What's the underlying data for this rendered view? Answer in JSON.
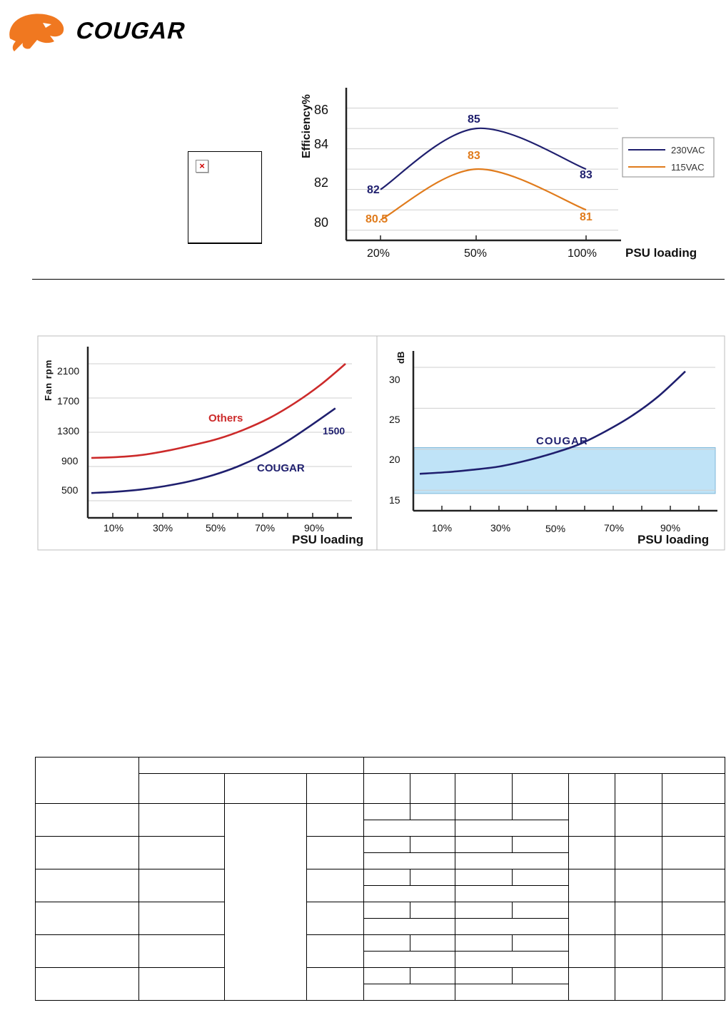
{
  "brand": {
    "name": "COUGAR",
    "colors": {
      "logo": "#f07820",
      "wordmark": "#000000"
    }
  },
  "broken_image": {
    "icon": "broken-image-icon",
    "color": "#d00000"
  },
  "charts": [
    {
      "type": "line",
      "ylabel": "Efficiency%",
      "xlabel": "PSU loading",
      "categories": [
        "20%",
        "50%",
        "100%"
      ],
      "yticks": [
        "80",
        "82",
        "84",
        "86"
      ],
      "ylim": [
        79.5,
        87
      ],
      "series": [
        {
          "name": "230VAC",
          "color": "#1f1f6e",
          "values": [
            82,
            85,
            83
          ],
          "labels": [
            "82",
            "85",
            "83"
          ]
        },
        {
          "name": "115VAC",
          "color": "#e07b1c",
          "values": [
            80.5,
            83,
            81
          ],
          "labels": [
            "80.5",
            "83",
            "81"
          ]
        }
      ],
      "legend": "right"
    },
    {
      "type": "line",
      "ylabel": "Fan rpm",
      "xlabel": "PSU loading",
      "xticks": [
        "10%",
        "30%",
        "50%",
        "70%",
        "90%"
      ],
      "yticks": [
        "500",
        "900",
        "1300",
        "1700",
        "2100"
      ],
      "ylim": [
        300,
        2300
      ],
      "series": [
        {
          "name": "Others",
          "color": "#cc2a2a",
          "x": [
            0,
            10,
            20,
            30,
            40,
            50,
            60,
            70,
            80,
            90,
            100
          ],
          "values": [
            1000,
            1010,
            1035,
            1085,
            1150,
            1225,
            1330,
            1465,
            1640,
            1850,
            2100
          ]
        },
        {
          "name": "COUGAR",
          "color": "#1f1f6e",
          "x": [
            0,
            10,
            20,
            30,
            40,
            50,
            60,
            70,
            80,
            90,
            100
          ],
          "values": [
            590,
            605,
            630,
            670,
            725,
            800,
            900,
            1030,
            1190,
            1380,
            1580
          ]
        }
      ],
      "annotations": [
        "1500"
      ]
    },
    {
      "type": "line",
      "ylabel": "dB",
      "xlabel": "PSU loading",
      "xticks": [
        "10%",
        "30%",
        "50%",
        "70%",
        "90%"
      ],
      "yticks": [
        "15",
        "20",
        "25",
        "30"
      ],
      "ylim": [
        12.5,
        32
      ],
      "band": {
        "from": 14.6,
        "to": 20.2,
        "color": "#bfe3f7"
      },
      "series": [
        {
          "name": "COUGAR",
          "color": "#1f1f6e",
          "x": [
            0,
            10,
            20,
            30,
            40,
            50,
            60,
            70,
            80,
            90,
            100
          ],
          "values": [
            17,
            17.2,
            17.5,
            17.9,
            18.6,
            19.5,
            20.6,
            22.2,
            24.1,
            26.5,
            29.5
          ]
        }
      ]
    }
  ],
  "table": {
    "rows": 6
  }
}
